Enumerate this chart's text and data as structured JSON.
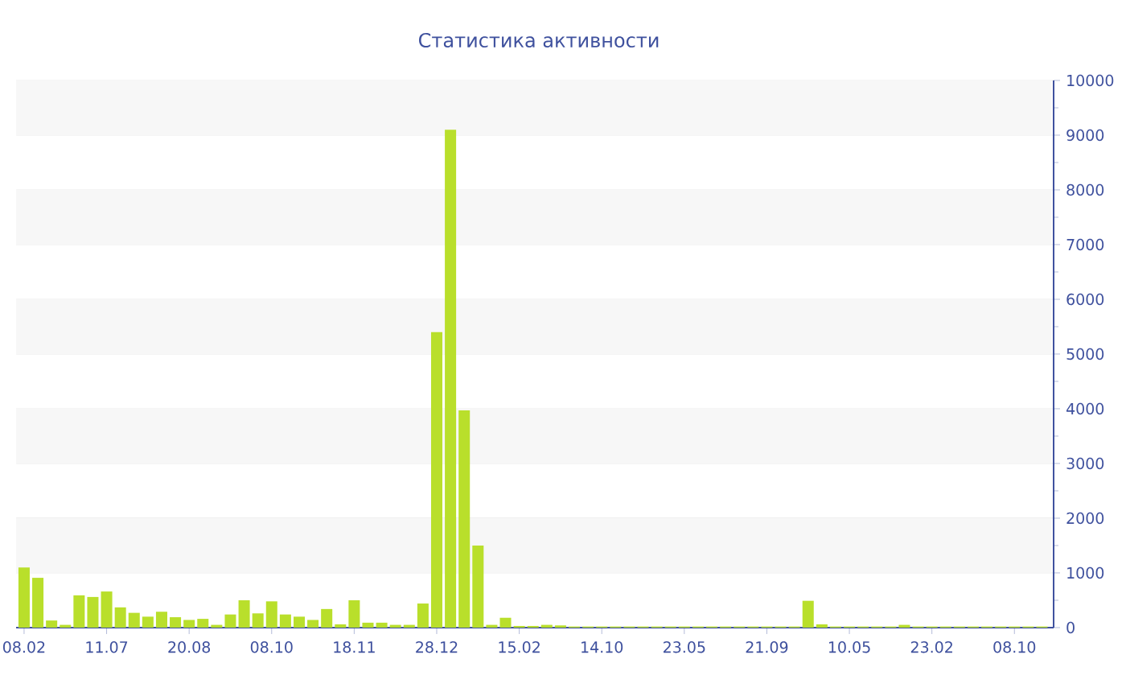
{
  "chart_data": {
    "type": "bar",
    "title": "Статистика активности",
    "categories": [
      "08.02",
      null,
      null,
      null,
      null,
      null,
      "11.07",
      null,
      null,
      null,
      null,
      null,
      "20.08",
      null,
      null,
      null,
      null,
      null,
      "08.10",
      null,
      null,
      null,
      null,
      null,
      "18.11",
      null,
      null,
      null,
      null,
      null,
      "28.12",
      null,
      null,
      null,
      null,
      null,
      "15.02",
      null,
      null,
      null,
      null,
      null,
      "14.10",
      null,
      null,
      null,
      null,
      null,
      "23.05",
      null,
      null,
      null,
      null,
      null,
      "21.09",
      null,
      null,
      null,
      null,
      null,
      "10.05",
      null,
      null,
      null,
      null,
      null,
      "23.02",
      null,
      null,
      null,
      null,
      null,
      "08.10",
      null,
      null
    ],
    "values": [
      1100,
      910,
      130,
      50,
      590,
      560,
      660,
      370,
      270,
      200,
      290,
      190,
      140,
      160,
      50,
      240,
      500,
      260,
      480,
      240,
      200,
      140,
      340,
      60,
      500,
      90,
      90,
      50,
      50,
      440,
      5400,
      9100,
      3970,
      1500,
      50,
      180,
      30,
      30,
      50,
      40,
      20,
      20,
      20,
      20,
      20,
      20,
      20,
      20,
      20,
      20,
      20,
      20,
      20,
      20,
      20,
      20,
      20,
      490,
      60,
      20,
      20,
      20,
      20,
      20,
      50,
      20,
      20,
      20,
      20,
      20,
      20,
      20,
      20,
      20,
      20
    ],
    "color": "#b9df2b",
    "ylim": [
      0,
      10000
    ],
    "yticks": [
      0,
      1000,
      2000,
      3000,
      4000,
      5000,
      6000,
      7000,
      8000,
      9000,
      10000
    ],
    "grid": "y"
  }
}
